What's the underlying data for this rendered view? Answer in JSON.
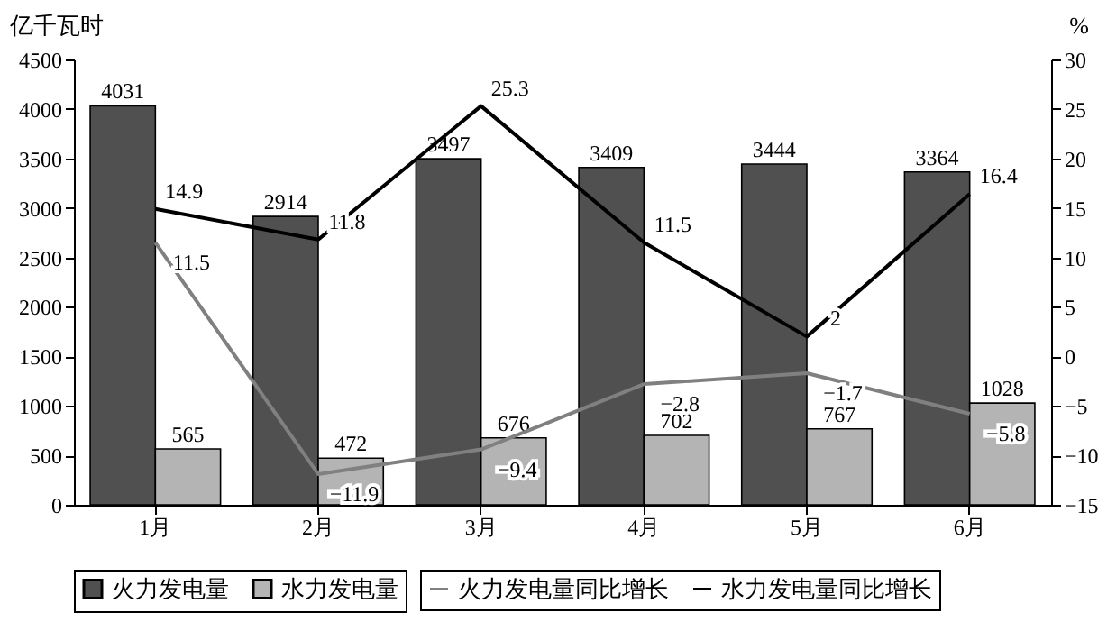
{
  "chart_data": {
    "type": "bar",
    "categories": [
      "1月",
      "2月",
      "3月",
      "4月",
      "5月",
      "6月"
    ],
    "ylabel": "亿千瓦时",
    "y2label": "%",
    "ylim": [
      0,
      4500
    ],
    "yticks": [
      0,
      500,
      1000,
      1500,
      2000,
      2500,
      3000,
      3500,
      4000,
      4500
    ],
    "y2lim": [
      -15,
      30
    ],
    "y2ticks": [
      -15,
      -10,
      -5,
      0,
      5,
      10,
      15,
      20,
      25,
      30
    ],
    "series": [
      {
        "name": "火力发电量",
        "type": "bar",
        "color": "#505050",
        "values": [
          4031,
          2914,
          3497,
          3409,
          3444,
          3364
        ]
      },
      {
        "name": "水力发电量",
        "type": "bar",
        "color": "#b4b4b4",
        "values": [
          565,
          472,
          676,
          702,
          767,
          1028
        ]
      },
      {
        "name": "火力发电量同比增长",
        "type": "line",
        "axis": "y2",
        "color": "#808080",
        "values": [
          11.5,
          -11.9,
          -9.4,
          -2.8,
          -1.7,
          -5.8
        ]
      },
      {
        "name": "水力发电量同比增长",
        "type": "line",
        "axis": "y2",
        "color": "#000000",
        "values": [
          14.9,
          11.8,
          25.3,
          11.5,
          2,
          16.4
        ]
      }
    ],
    "data_labels": true,
    "grid": false,
    "legend": "bottom"
  }
}
